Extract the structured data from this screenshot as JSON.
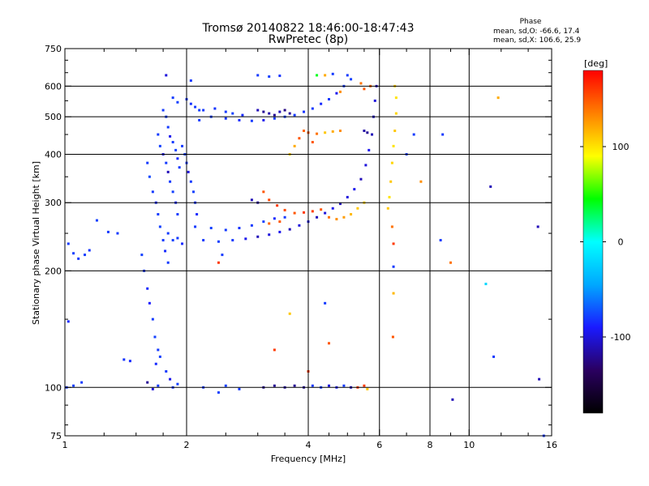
{
  "header": {
    "title": "Tromsø 20140822 18:46:00-18:47:43",
    "subtitle": "RwPretec (8p)"
  },
  "phase_info": {
    "heading": "Phase",
    "o_line": "mean, sd,O: -66.6, 17.4",
    "x_line": "mean, sd,X: 106.6, 25.9"
  },
  "colorbar": {
    "unit": "[deg]",
    "ticks": [
      {
        "value": 100,
        "label": "100"
      },
      {
        "value": 0,
        "label": "0"
      },
      {
        "value": -100,
        "label": "-100"
      }
    ],
    "range": [
      -180,
      180
    ],
    "stops": [
      "#000000",
      "#2a0060",
      "#1a1aff",
      "#00a8ff",
      "#00ffff",
      "#00ff00",
      "#ffff00",
      "#ff8000",
      "#ff0000"
    ]
  },
  "chart_data": {
    "type": "scatter",
    "title": "Tromsø 20140822 18:46:00-18:47:43",
    "subtitle": "RwPretec (8p)",
    "xlabel": "Frequency [MHz]",
    "ylabel": "Stationary phase Virtual Height [km]",
    "x_scale": "log",
    "y_scale": "log",
    "xlim": [
      1,
      16
    ],
    "ylim": [
      75,
      750
    ],
    "x_ticks": [
      {
        "value": 1,
        "label": "1"
      },
      {
        "value": 2,
        "label": "2"
      },
      {
        "value": 4,
        "label": "4"
      },
      {
        "value": 6,
        "label": "6"
      },
      {
        "value": 8,
        "label": "8"
      },
      {
        "value": 10,
        "label": "10"
      },
      {
        "value": 16,
        "label": "16"
      }
    ],
    "x_minor_ticks": [
      1.25,
      1.5,
      1.75,
      2.5,
      3,
      3.5,
      4.5,
      5,
      5.5,
      7,
      9,
      12,
      14
    ],
    "y_ticks": [
      {
        "value": 75,
        "label": "75"
      },
      {
        "value": 100,
        "label": "100"
      },
      {
        "value": 200,
        "label": "200"
      },
      {
        "value": 300,
        "label": "300"
      },
      {
        "value": 400,
        "label": "400"
      },
      {
        "value": 500,
        "label": "500"
      },
      {
        "value": 600,
        "label": "600"
      },
      {
        "value": 750,
        "label": "750"
      }
    ],
    "grid_x": [
      2,
      4,
      6,
      8,
      10
    ],
    "grid_y": [
      100,
      200,
      300,
      400,
      500,
      600
    ],
    "grid": true,
    "color_value": "phase [deg]",
    "points": [
      {
        "x": 1.02,
        "y": 235,
        "phase": -80
      },
      {
        "x": 1.05,
        "y": 222,
        "phase": -78
      },
      {
        "x": 1.08,
        "y": 215,
        "phase": -80
      },
      {
        "x": 1.12,
        "y": 220,
        "phase": -79
      },
      {
        "x": 1.15,
        "y": 226,
        "phase": -82
      },
      {
        "x": 1.02,
        "y": 148,
        "phase": -85
      },
      {
        "x": 1.01,
        "y": 100,
        "phase": -80
      },
      {
        "x": 1.05,
        "y": 101,
        "phase": -78
      },
      {
        "x": 1.1,
        "y": 103,
        "phase": -80
      },
      {
        "x": 1.2,
        "y": 270,
        "phase": -78
      },
      {
        "x": 1.28,
        "y": 252,
        "phase": -80
      },
      {
        "x": 1.35,
        "y": 250,
        "phase": -80
      },
      {
        "x": 1.4,
        "y": 118,
        "phase": -82
      },
      {
        "x": 1.45,
        "y": 117,
        "phase": -85
      },
      {
        "x": 1.55,
        "y": 220,
        "phase": -78
      },
      {
        "x": 1.57,
        "y": 200,
        "phase": -80
      },
      {
        "x": 1.6,
        "y": 180,
        "phase": -85
      },
      {
        "x": 1.62,
        "y": 165,
        "phase": -90
      },
      {
        "x": 1.65,
        "y": 150,
        "phase": -80
      },
      {
        "x": 1.67,
        "y": 135,
        "phase": -78
      },
      {
        "x": 1.7,
        "y": 125,
        "phase": -80
      },
      {
        "x": 1.68,
        "y": 115,
        "phase": -85
      },
      {
        "x": 1.72,
        "y": 120,
        "phase": -78
      },
      {
        "x": 1.6,
        "y": 380,
        "phase": -80
      },
      {
        "x": 1.62,
        "y": 350,
        "phase": -75
      },
      {
        "x": 1.65,
        "y": 320,
        "phase": -80
      },
      {
        "x": 1.68,
        "y": 300,
        "phase": -85
      },
      {
        "x": 1.7,
        "y": 280,
        "phase": -80
      },
      {
        "x": 1.72,
        "y": 260,
        "phase": -78
      },
      {
        "x": 1.75,
        "y": 240,
        "phase": -80
      },
      {
        "x": 1.77,
        "y": 225,
        "phase": -85
      },
      {
        "x": 1.8,
        "y": 210,
        "phase": -80
      },
      {
        "x": 1.7,
        "y": 450,
        "phase": -80
      },
      {
        "x": 1.72,
        "y": 420,
        "phase": -78
      },
      {
        "x": 1.75,
        "y": 400,
        "phase": -95
      },
      {
        "x": 1.78,
        "y": 380,
        "phase": -80
      },
      {
        "x": 1.8,
        "y": 360,
        "phase": -110
      },
      {
        "x": 1.82,
        "y": 340,
        "phase": -80
      },
      {
        "x": 1.85,
        "y": 320,
        "phase": -78
      },
      {
        "x": 1.88,
        "y": 300,
        "phase": -85
      },
      {
        "x": 1.9,
        "y": 280,
        "phase": -80
      },
      {
        "x": 1.75,
        "y": 520,
        "phase": -80
      },
      {
        "x": 1.78,
        "y": 500,
        "phase": -78
      },
      {
        "x": 1.8,
        "y": 470,
        "phase": -80
      },
      {
        "x": 1.82,
        "y": 445,
        "phase": -95
      },
      {
        "x": 1.85,
        "y": 430,
        "phase": -80
      },
      {
        "x": 1.88,
        "y": 410,
        "phase": -78
      },
      {
        "x": 1.9,
        "y": 390,
        "phase": -85
      },
      {
        "x": 1.92,
        "y": 370,
        "phase": -80
      },
      {
        "x": 1.95,
        "y": 420,
        "phase": -80
      },
      {
        "x": 1.98,
        "y": 400,
        "phase": -78
      },
      {
        "x": 2.0,
        "y": 380,
        "phase": -80
      },
      {
        "x": 2.02,
        "y": 360,
        "phase": -100
      },
      {
        "x": 2.05,
        "y": 340,
        "phase": -80
      },
      {
        "x": 2.08,
        "y": 320,
        "phase": -78
      },
      {
        "x": 2.1,
        "y": 300,
        "phase": -80
      },
      {
        "x": 2.12,
        "y": 280,
        "phase": -85
      },
      {
        "x": 1.85,
        "y": 560,
        "phase": -80
      },
      {
        "x": 1.9,
        "y": 545,
        "phase": -78
      },
      {
        "x": 2.0,
        "y": 555,
        "phase": -80
      },
      {
        "x": 2.05,
        "y": 540,
        "phase": -82
      },
      {
        "x": 2.1,
        "y": 530,
        "phase": -80
      },
      {
        "x": 2.15,
        "y": 520,
        "phase": -78
      },
      {
        "x": 1.78,
        "y": 640,
        "phase": -100
      },
      {
        "x": 2.05,
        "y": 620,
        "phase": -80
      },
      {
        "x": 1.8,
        "y": 250,
        "phase": -80
      },
      {
        "x": 1.85,
        "y": 240,
        "phase": -78
      },
      {
        "x": 1.9,
        "y": 243,
        "phase": -80
      },
      {
        "x": 1.95,
        "y": 235,
        "phase": -85
      },
      {
        "x": 1.78,
        "y": 110,
        "phase": -80
      },
      {
        "x": 1.82,
        "y": 105,
        "phase": -95
      },
      {
        "x": 1.85,
        "y": 100,
        "phase": -80
      },
      {
        "x": 1.9,
        "y": 102,
        "phase": -78
      },
      {
        "x": 1.6,
        "y": 103,
        "phase": -120
      },
      {
        "x": 1.65,
        "y": 99,
        "phase": -100
      },
      {
        "x": 1.7,
        "y": 101,
        "phase": -80
      },
      {
        "x": 2.15,
        "y": 490,
        "phase": -80
      },
      {
        "x": 2.3,
        "y": 500,
        "phase": -78
      },
      {
        "x": 2.5,
        "y": 495,
        "phase": -82
      },
      {
        "x": 2.7,
        "y": 490,
        "phase": -85
      },
      {
        "x": 2.9,
        "y": 488,
        "phase": -80
      },
      {
        "x": 3.1,
        "y": 490,
        "phase": -95
      },
      {
        "x": 3.3,
        "y": 495,
        "phase": -80
      },
      {
        "x": 3.5,
        "y": 500,
        "phase": -78
      },
      {
        "x": 3.7,
        "y": 505,
        "phase": -80
      },
      {
        "x": 3.9,
        "y": 515,
        "phase": -82
      },
      {
        "x": 4.1,
        "y": 525,
        "phase": -80
      },
      {
        "x": 4.3,
        "y": 540,
        "phase": -85
      },
      {
        "x": 4.5,
        "y": 555,
        "phase": -80
      },
      {
        "x": 4.7,
        "y": 575,
        "phase": -95
      },
      {
        "x": 4.9,
        "y": 600,
        "phase": -80
      },
      {
        "x": 5.1,
        "y": 625,
        "phase": -78
      },
      {
        "x": 2.2,
        "y": 520,
        "phase": -80
      },
      {
        "x": 2.35,
        "y": 525,
        "phase": -82
      },
      {
        "x": 2.5,
        "y": 515,
        "phase": -80
      },
      {
        "x": 2.6,
        "y": 510,
        "phase": -78
      },
      {
        "x": 2.75,
        "y": 505,
        "phase": -85
      },
      {
        "x": 3.0,
        "y": 520,
        "phase": -110
      },
      {
        "x": 3.1,
        "y": 515,
        "phase": -120
      },
      {
        "x": 3.2,
        "y": 510,
        "phase": -115
      },
      {
        "x": 3.3,
        "y": 505,
        "phase": -120
      },
      {
        "x": 3.4,
        "y": 515,
        "phase": -110
      },
      {
        "x": 3.5,
        "y": 520,
        "phase": -125
      },
      {
        "x": 3.6,
        "y": 510,
        "phase": -118
      },
      {
        "x": 5.4,
        "y": 610,
        "phase": 140
      },
      {
        "x": 5.5,
        "y": 590,
        "phase": 150
      },
      {
        "x": 5.7,
        "y": 600,
        "phase": 145
      },
      {
        "x": 4.8,
        "y": 580,
        "phase": 130
      },
      {
        "x": 3.9,
        "y": 460,
        "phase": 145
      },
      {
        "x": 4.0,
        "y": 455,
        "phase": 150
      },
      {
        "x": 4.2,
        "y": 452,
        "phase": 140
      },
      {
        "x": 4.4,
        "y": 455,
        "phase": 110
      },
      {
        "x": 4.6,
        "y": 458,
        "phase": 120
      },
      {
        "x": 4.8,
        "y": 460,
        "phase": 130
      },
      {
        "x": 3.8,
        "y": 440,
        "phase": 150
      },
      {
        "x": 4.1,
        "y": 430,
        "phase": 150
      },
      {
        "x": 3.7,
        "y": 420,
        "phase": 120
      },
      {
        "x": 3.6,
        "y": 400,
        "phase": 110
      },
      {
        "x": 5.5,
        "y": 460,
        "phase": -115
      },
      {
        "x": 5.6,
        "y": 455,
        "phase": -120
      },
      {
        "x": 2.1,
        "y": 260,
        "phase": -80
      },
      {
        "x": 2.3,
        "y": 258,
        "phase": -78
      },
      {
        "x": 2.5,
        "y": 255,
        "phase": -80
      },
      {
        "x": 2.7,
        "y": 258,
        "phase": -82
      },
      {
        "x": 2.9,
        "y": 262,
        "phase": -80
      },
      {
        "x": 3.1,
        "y": 268,
        "phase": -78
      },
      {
        "x": 3.3,
        "y": 273,
        "phase": -85
      },
      {
        "x": 3.5,
        "y": 275,
        "phase": -80
      },
      {
        "x": 2.2,
        "y": 240,
        "phase": -80
      },
      {
        "x": 2.4,
        "y": 238,
        "phase": -78
      },
      {
        "x": 2.6,
        "y": 240,
        "phase": -80
      },
      {
        "x": 2.8,
        "y": 242,
        "phase": -95
      },
      {
        "x": 3.0,
        "y": 245,
        "phase": -110
      },
      {
        "x": 3.2,
        "y": 248,
        "phase": -100
      },
      {
        "x": 3.4,
        "y": 252,
        "phase": -95
      },
      {
        "x": 3.6,
        "y": 256,
        "phase": -110
      },
      {
        "x": 3.8,
        "y": 262,
        "phase": -100
      },
      {
        "x": 4.0,
        "y": 268,
        "phase": -95
      },
      {
        "x": 4.2,
        "y": 275,
        "phase": -110
      },
      {
        "x": 4.4,
        "y": 282,
        "phase": -100
      },
      {
        "x": 4.6,
        "y": 290,
        "phase": -95
      },
      {
        "x": 4.8,
        "y": 298,
        "phase": -110
      },
      {
        "x": 5.0,
        "y": 310,
        "phase": -100
      },
      {
        "x": 5.2,
        "y": 325,
        "phase": -95
      },
      {
        "x": 5.4,
        "y": 345,
        "phase": -110
      },
      {
        "x": 5.55,
        "y": 375,
        "phase": -100
      },
      {
        "x": 5.65,
        "y": 410,
        "phase": -95
      },
      {
        "x": 5.75,
        "y": 450,
        "phase": -110
      },
      {
        "x": 5.8,
        "y": 500,
        "phase": -105
      },
      {
        "x": 5.85,
        "y": 550,
        "phase": -100
      },
      {
        "x": 5.9,
        "y": 600,
        "phase": -110
      },
      {
        "x": 3.1,
        "y": 320,
        "phase": 150
      },
      {
        "x": 3.2,
        "y": 305,
        "phase": 155
      },
      {
        "x": 3.35,
        "y": 295,
        "phase": 160
      },
      {
        "x": 3.5,
        "y": 287,
        "phase": 155
      },
      {
        "x": 3.7,
        "y": 282,
        "phase": 150
      },
      {
        "x": 3.9,
        "y": 283,
        "phase": 160
      },
      {
        "x": 4.1,
        "y": 285,
        "phase": 158
      },
      {
        "x": 4.3,
        "y": 288,
        "phase": 150
      },
      {
        "x": 4.5,
        "y": 275,
        "phase": 140
      },
      {
        "x": 4.7,
        "y": 272,
        "phase": 130
      },
      {
        "x": 4.9,
        "y": 275,
        "phase": 125
      },
      {
        "x": 5.1,
        "y": 280,
        "phase": 115
      },
      {
        "x": 5.3,
        "y": 290,
        "phase": 110
      },
      {
        "x": 5.5,
        "y": 300,
        "phase": 105
      },
      {
        "x": 3.2,
        "y": 265,
        "phase": 145
      },
      {
        "x": 3.4,
        "y": 268,
        "phase": 150
      },
      {
        "x": 2.9,
        "y": 305,
        "phase": -110
      },
      {
        "x": 3.0,
        "y": 300,
        "phase": -115
      },
      {
        "x": 6.35,
        "y": 310,
        "phase": 100
      },
      {
        "x": 6.4,
        "y": 340,
        "phase": 110
      },
      {
        "x": 6.45,
        "y": 380,
        "phase": 105
      },
      {
        "x": 6.5,
        "y": 420,
        "phase": 100
      },
      {
        "x": 6.55,
        "y": 460,
        "phase": 110
      },
      {
        "x": 6.6,
        "y": 510,
        "phase": 105
      },
      {
        "x": 6.6,
        "y": 560,
        "phase": 100
      },
      {
        "x": 6.55,
        "y": 600,
        "phase": 110
      },
      {
        "x": 6.3,
        "y": 290,
        "phase": 110
      },
      {
        "x": 6.45,
        "y": 260,
        "phase": 140
      },
      {
        "x": 6.5,
        "y": 235,
        "phase": 160
      },
      {
        "x": 6.5,
        "y": 205,
        "phase": -80
      },
      {
        "x": 6.5,
        "y": 175,
        "phase": 115
      },
      {
        "x": 6.48,
        "y": 135,
        "phase": 150
      },
      {
        "x": 7.0,
        "y": 400,
        "phase": -80
      },
      {
        "x": 7.3,
        "y": 450,
        "phase": -80
      },
      {
        "x": 5.0,
        "y": 640,
        "phase": -80
      },
      {
        "x": 4.2,
        "y": 640,
        "phase": 40
      },
      {
        "x": 4.4,
        "y": 640,
        "phase": 120
      },
      {
        "x": 4.6,
        "y": 645,
        "phase": -80
      },
      {
        "x": 3.0,
        "y": 640,
        "phase": -80
      },
      {
        "x": 3.2,
        "y": 635,
        "phase": -78
      },
      {
        "x": 3.4,
        "y": 638,
        "phase": -82
      },
      {
        "x": 3.1,
        "y": 100,
        "phase": -120
      },
      {
        "x": 3.3,
        "y": 101,
        "phase": -120
      },
      {
        "x": 3.5,
        "y": 100,
        "phase": -115
      },
      {
        "x": 3.7,
        "y": 101,
        "phase": -120
      },
      {
        "x": 3.9,
        "y": 100,
        "phase": -118
      },
      {
        "x": 4.1,
        "y": 101,
        "phase": -80
      },
      {
        "x": 4.3,
        "y": 100,
        "phase": -78
      },
      {
        "x": 4.5,
        "y": 101,
        "phase": -100
      },
      {
        "x": 4.7,
        "y": 100,
        "phase": -90
      },
      {
        "x": 4.9,
        "y": 101,
        "phase": -80
      },
      {
        "x": 5.1,
        "y": 100,
        "phase": -110
      },
      {
        "x": 5.3,
        "y": 100,
        "phase": 160
      },
      {
        "x": 5.5,
        "y": 101,
        "phase": 160
      },
      {
        "x": 5.6,
        "y": 99,
        "phase": 110
      },
      {
        "x": 2.2,
        "y": 100,
        "phase": -80
      },
      {
        "x": 2.5,
        "y": 101,
        "phase": -78
      },
      {
        "x": 2.7,
        "y": 99,
        "phase": -80
      },
      {
        "x": 2.4,
        "y": 97,
        "phase": -78
      },
      {
        "x": 4.5,
        "y": 130,
        "phase": 150
      },
      {
        "x": 3.3,
        "y": 125,
        "phase": 160
      },
      {
        "x": 4.0,
        "y": 110,
        "phase": 160
      },
      {
        "x": 3.6,
        "y": 155,
        "phase": 110
      },
      {
        "x": 4.4,
        "y": 165,
        "phase": -80
      },
      {
        "x": 2.45,
        "y": 220,
        "phase": -80
      },
      {
        "x": 2.4,
        "y": 210,
        "phase": 160
      },
      {
        "x": 7.6,
        "y": 340,
        "phase": 130
      },
      {
        "x": 8.5,
        "y": 240,
        "phase": -80
      },
      {
        "x": 9.0,
        "y": 210,
        "phase": 140
      },
      {
        "x": 8.6,
        "y": 450,
        "phase": -80
      },
      {
        "x": 11.3,
        "y": 330,
        "phase": -110
      },
      {
        "x": 11.8,
        "y": 560,
        "phase": 120
      },
      {
        "x": 11.5,
        "y": 120,
        "phase": -80
      },
      {
        "x": 11.0,
        "y": 185,
        "phase": -20
      },
      {
        "x": 14.8,
        "y": 260,
        "phase": -110
      },
      {
        "x": 14.9,
        "y": 105,
        "phase": -110
      },
      {
        "x": 15.3,
        "y": 75,
        "phase": -80
      },
      {
        "x": 9.1,
        "y": 93,
        "phase": -110
      }
    ]
  }
}
